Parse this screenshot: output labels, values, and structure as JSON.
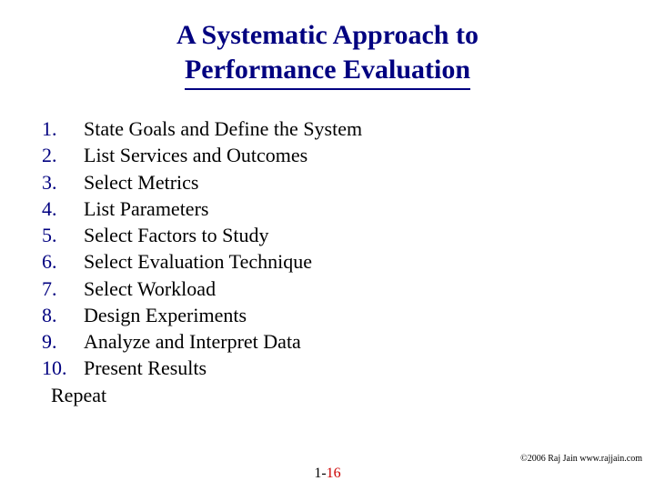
{
  "title": {
    "line1": "A Systematic Approach to",
    "line2": "Performance Evaluation",
    "color": "#000080",
    "underline_color": "#000080",
    "fontsize": 30,
    "weight": "bold"
  },
  "list": {
    "number_color": "#000080",
    "text_color": "#000000",
    "fontsize": 22,
    "items": [
      {
        "n": "1.",
        "text": "State Goals and Define the System"
      },
      {
        "n": "2.",
        "text": "List Services and Outcomes"
      },
      {
        "n": "3.",
        "text": "Select Metrics"
      },
      {
        "n": "4.",
        "text": "List Parameters"
      },
      {
        "n": "5.",
        "text": "Select Factors to Study"
      },
      {
        "n": "6.",
        "text": "Select Evaluation Technique"
      },
      {
        "n": "7.",
        "text": "Select Workload"
      },
      {
        "n": "8.",
        "text": "Design Experiments"
      },
      {
        "n": "9.",
        "text": "Analyze and Interpret Data"
      },
      {
        "n": "10.",
        "text": "Present Results"
      }
    ],
    "closing": "Repeat"
  },
  "footer": {
    "copyright": "©2006 Raj Jain www.rajjain.com",
    "page_prefix": "1-",
    "page_number": "16",
    "prefix_color": "#000000",
    "number_color": "#cc0000"
  },
  "background_color": "#ffffff"
}
